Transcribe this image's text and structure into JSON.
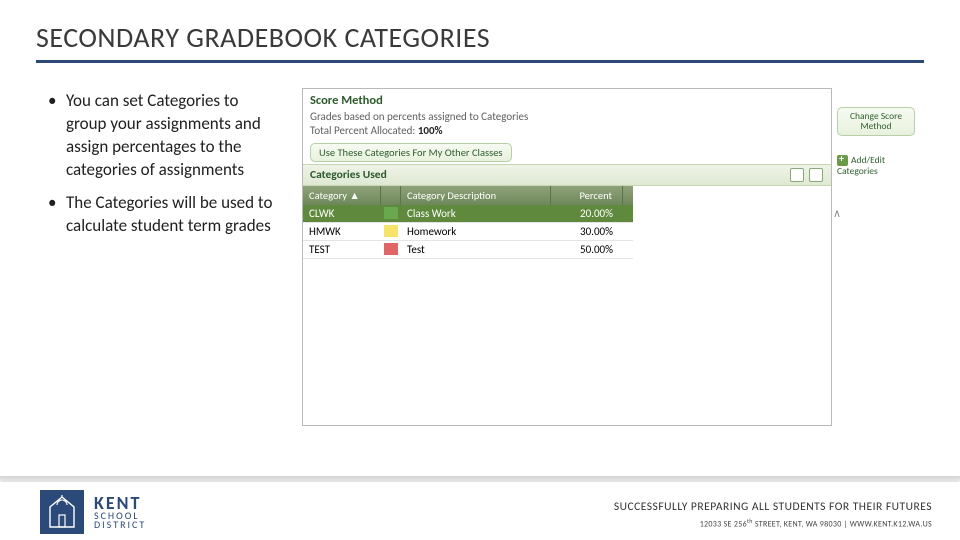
{
  "colors": {
    "accent": "#2b4a7a",
    "panel_border": "#b9b9b9",
    "btn_border": "#b6cfa4",
    "btn_grad_top": "#f6fbf2",
    "btn_grad_bot": "#e8f1dd",
    "section_grad_top": "#eef3e7",
    "section_grad_bot": "#dfe9d2",
    "grid_head_top": "#8fa37a",
    "grid_head_bot": "#6e875a",
    "row_selected": "#5f8a3e",
    "text_title": "#3a3a3a",
    "text_body": "#202020",
    "text_green": "#2c5a2c"
  },
  "slide": {
    "title": "SECONDARY GRADEBOOK CATEGORIES",
    "bullets": [
      "You can set Categories to group your assignments and assign percentages to the categories of assignments",
      "The Categories will be used to calculate student term grades"
    ]
  },
  "panel": {
    "title": "Score Method",
    "subtitle_prefix": "Grades based on percents assigned to Categories",
    "total_label": "Total Percent Allocated:",
    "total_value": "100%",
    "btn_change": "Change Score Method",
    "btn_use_other": "Use These Categories For My Other Classes",
    "section_label": "Categories Used",
    "side_add_label": "Add/Edit Categories",
    "grid": {
      "headers": {
        "category": "Category ▲",
        "description": "Category Description",
        "percent": "Percent"
      },
      "rows": [
        {
          "code": "CLWK",
          "desc": "Class Work",
          "pct": "20.00%",
          "swatch": "#6aa84f",
          "selected": true
        },
        {
          "code": "HMWK",
          "desc": "Homework",
          "pct": "30.00%",
          "swatch": "#f7e26b",
          "selected": false
        },
        {
          "code": "TEST",
          "desc": "Test",
          "pct": "50.00%",
          "swatch": "#e06666",
          "selected": false
        }
      ]
    }
  },
  "footer": {
    "logo": {
      "line1": "KENT",
      "line2": "SCHOOL",
      "line3": "DISTRICT"
    },
    "tagline": "SUCCESSFULLY PREPARING ALL STUDENTS FOR THEIR FUTURES",
    "address_street": "12033 SE 256",
    "address_suffix": "th",
    "address_rest": " STREET, KENT, WA 98030",
    "address_sep": "   |   ",
    "address_url": "WWW.KENT.K12.WA.US"
  }
}
